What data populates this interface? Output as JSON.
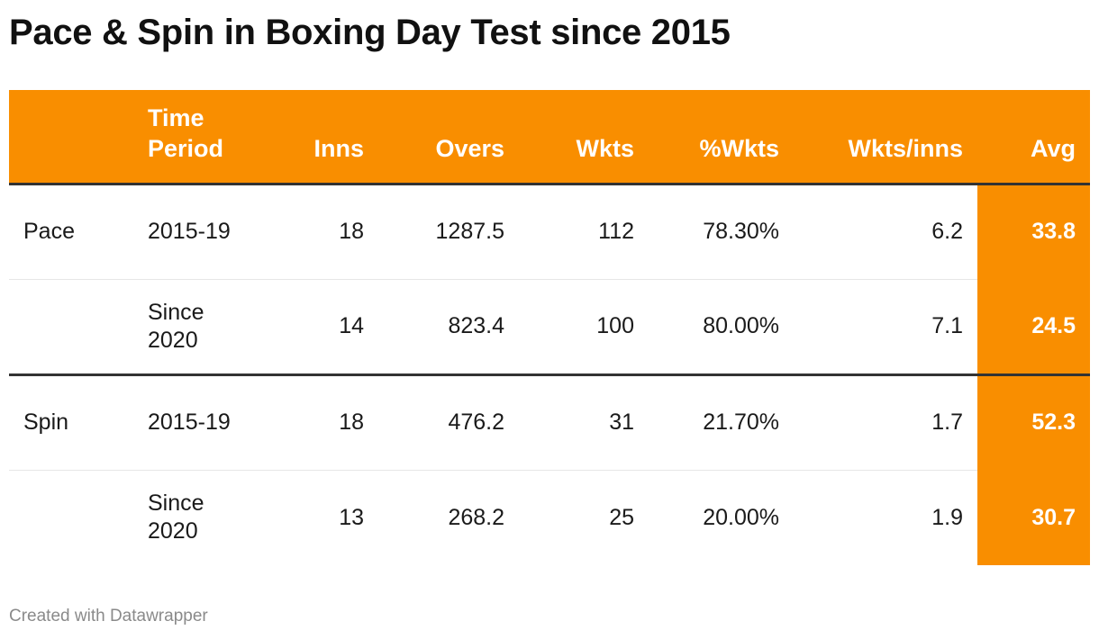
{
  "title": "Pace & Spin in Boxing Day Test since 2015",
  "footer": "Created with Datawrapper",
  "colors": {
    "accent": "#f98e00",
    "header_text": "#ffffff",
    "rule": "#333333"
  },
  "chart_data": {
    "type": "table",
    "title": "Pace & Spin in Boxing Day Test since 2015",
    "columns": [
      "",
      "Time Period",
      "Inns",
      "Overs",
      "Wkts",
      "%Wkts",
      "Wkts/inns",
      "Avg"
    ],
    "rows": [
      [
        "Pace",
        "2015-19",
        "18",
        "1287.5",
        "112",
        "78.30%",
        "6.2",
        "33.8"
      ],
      [
        "",
        "Since 2020",
        "14",
        "823.4",
        "100",
        "80.00%",
        "7.1",
        "24.5"
      ],
      [
        "Spin",
        "2015-19",
        "18",
        "476.2",
        "31",
        "21.70%",
        "1.7",
        "52.3"
      ],
      [
        "",
        "Since 2020",
        "13",
        "268.2",
        "25",
        "20.00%",
        "1.9",
        "30.7"
      ]
    ],
    "highlight_column": "Avg"
  }
}
